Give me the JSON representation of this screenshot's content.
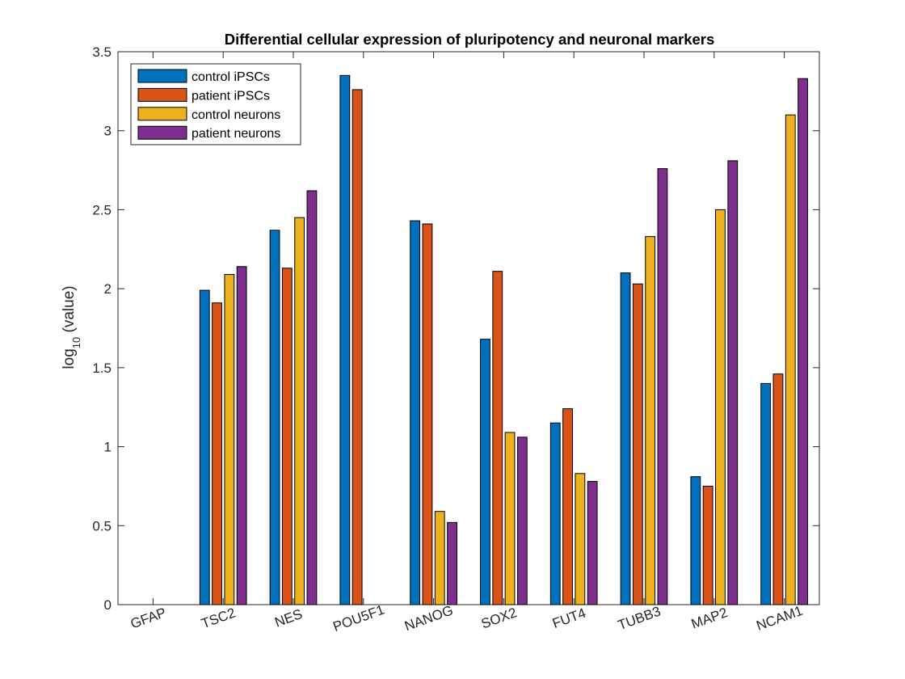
{
  "chart_data": {
    "type": "bar",
    "title": "Differential cellular expression of pluripotency and neuronal markers",
    "ylabel_main": "log",
    "ylabel_sub": "10",
    "ylabel_rest": " (value)",
    "xlabel": "",
    "ylim": [
      0,
      3.5
    ],
    "yticks": [
      "0",
      "0.5",
      "1",
      "1.5",
      "2",
      "2.5",
      "3",
      "3.5"
    ],
    "ytick_values": [
      0,
      0.5,
      1,
      1.5,
      2,
      2.5,
      3,
      3.5
    ],
    "categories": [
      "GFAP",
      "TSC2",
      "NES",
      "POU5F1",
      "NANOG",
      "SOX2",
      "FUT4",
      "TUBB3",
      "MAP2",
      "NCAM1"
    ],
    "series": [
      {
        "name": "control iPSCs",
        "color": "#0072BD",
        "values": [
          0,
          1.99,
          2.37,
          3.35,
          2.43,
          1.68,
          1.15,
          2.1,
          0.81,
          1.4
        ]
      },
      {
        "name": "patient iPSCs",
        "color": "#D95319",
        "values": [
          0,
          1.91,
          2.13,
          3.26,
          2.41,
          2.11,
          1.24,
          2.03,
          0.75,
          1.46
        ]
      },
      {
        "name": "control neurons",
        "color": "#EDB120",
        "values": [
          0,
          2.09,
          2.45,
          0,
          0.59,
          1.09,
          0.83,
          2.33,
          2.5,
          3.1
        ]
      },
      {
        "name": "patient neurons",
        "color": "#7E2F8E",
        "values": [
          0,
          2.14,
          2.62,
          0,
          0.52,
          1.06,
          0.78,
          2.76,
          2.81,
          3.33
        ]
      }
    ],
    "grid": false,
    "legend_position": "top-left"
  }
}
